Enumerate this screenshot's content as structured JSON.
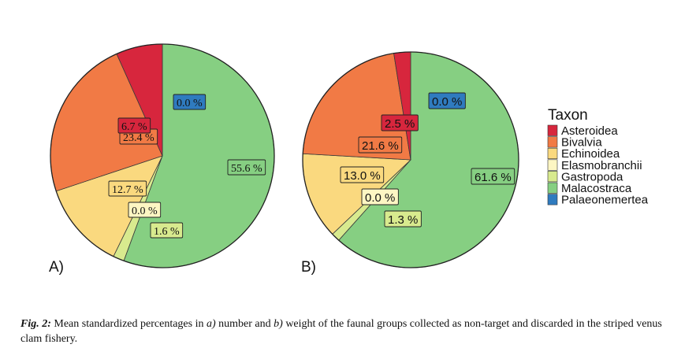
{
  "legend": {
    "title": "Taxon",
    "items": [
      {
        "label": "Asteroidea",
        "color": "#d7263d"
      },
      {
        "label": "Bivalvia",
        "color": "#f17a45"
      },
      {
        "label": "Echinoidea",
        "color": "#fad97f"
      },
      {
        "label": "Elasmobranchii",
        "color": "#fdf6c3"
      },
      {
        "label": "Gastropoda",
        "color": "#d8ea8e"
      },
      {
        "label": "Malacostraca",
        "color": "#86cf82"
      },
      {
        "label": "Palaeonemertea",
        "color": "#2f7bbf"
      }
    ]
  },
  "chart_data": [
    {
      "type": "pie",
      "panel_label": "A)",
      "categories": [
        "Asteroidea",
        "Bivalvia",
        "Echinoidea",
        "Elasmobranchii",
        "Gastropoda",
        "Malacostraca",
        "Palaeonemertea"
      ],
      "values": [
        6.7,
        23.4,
        12.7,
        0.0,
        1.6,
        55.6,
        0.0
      ],
      "labels": [
        "6.7 %",
        "23.4 %",
        "12.7 %",
        "0.0 %",
        "1.6 %",
        "55.6 %",
        "0.0 %"
      ]
    },
    {
      "type": "pie",
      "panel_label": "B)",
      "categories": [
        "Asteroidea",
        "Bivalvia",
        "Echinoidea",
        "Elasmobranchii",
        "Gastropoda",
        "Malacostraca",
        "Palaeonemertea"
      ],
      "values": [
        2.5,
        21.6,
        13.0,
        0.0,
        1.3,
        61.6,
        0.0
      ],
      "labels": [
        "2.5 %",
        "21.6 %",
        "13.0 %",
        "0.0 %",
        "1.3 %",
        "61.6 %",
        "0.0 %"
      ]
    }
  ],
  "caption": {
    "lead": "Fig. 2:",
    "part1": " Mean standardized percentages in ",
    "a": "a)",
    "part2": " number and ",
    "b": "b)",
    "part3": " weight of the faunal groups collected as non-target and discarded in the striped venus clam fishery."
  }
}
